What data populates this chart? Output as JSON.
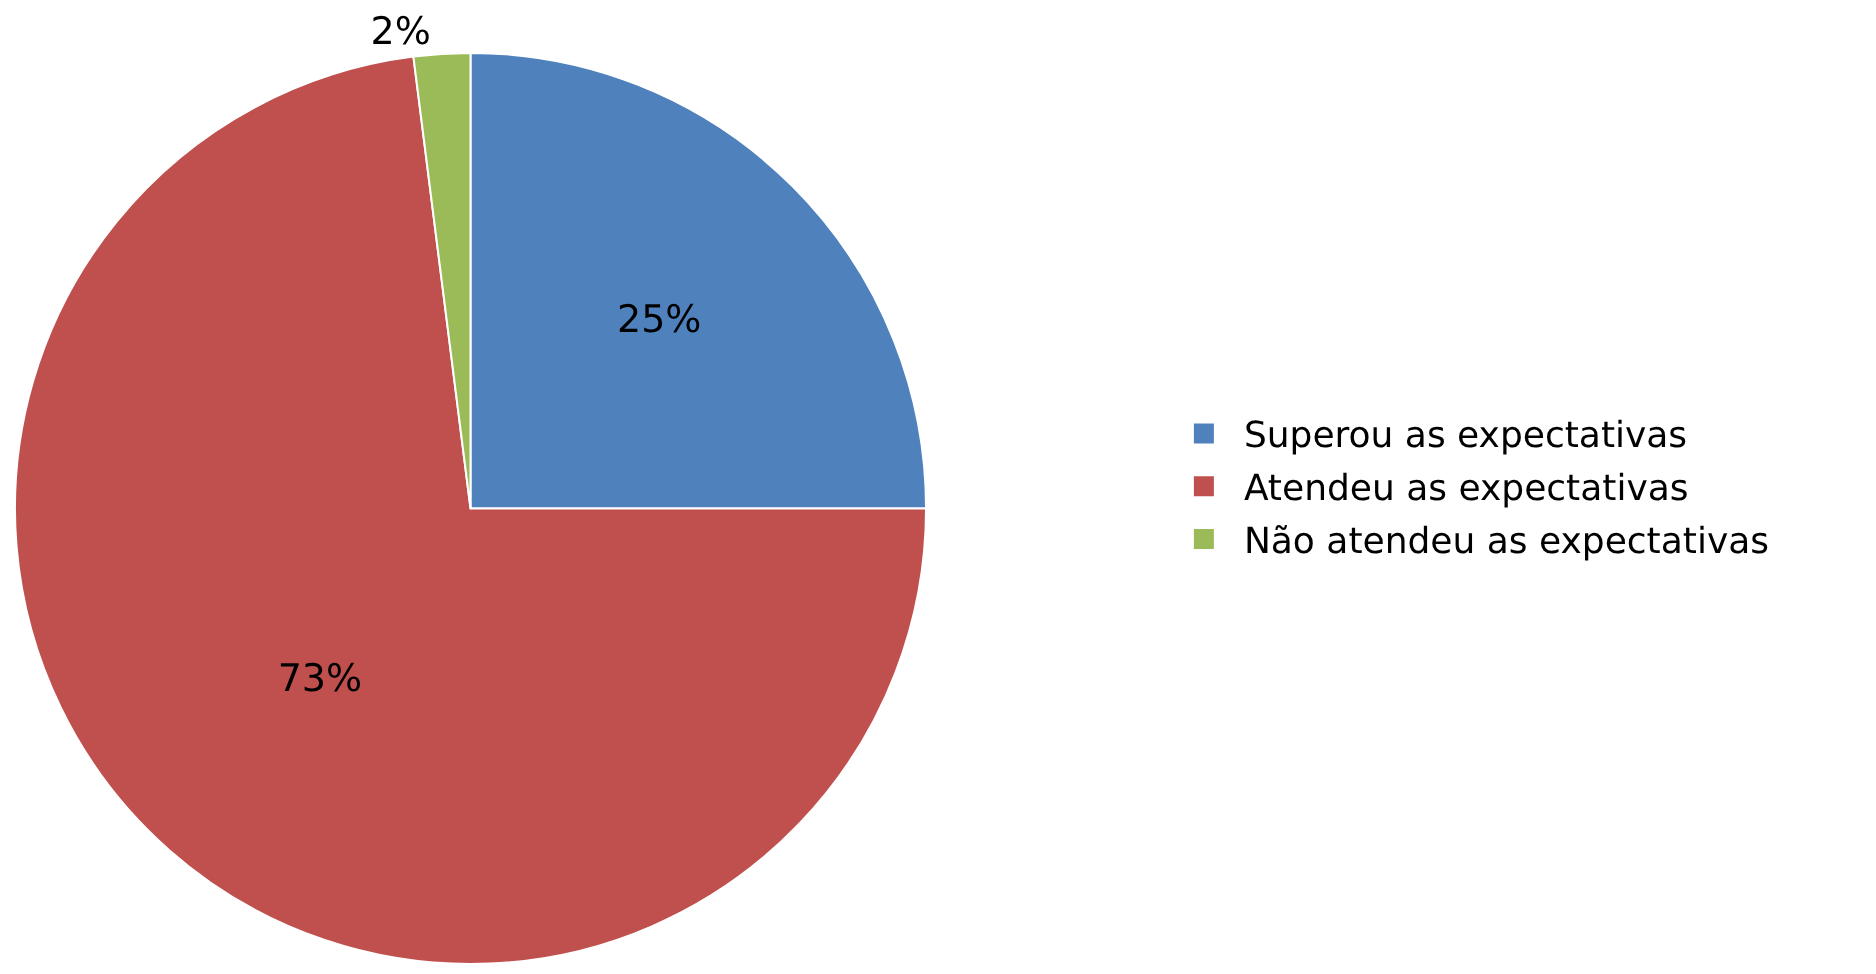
{
  "chart_data": {
    "type": "pie",
    "categories": [
      "Superou as expectativas",
      "Atendeu as expectativas",
      "Não atendeu as expectativas"
    ],
    "values": [
      25,
      73,
      2
    ],
    "colors": [
      "#4f81bd",
      "#c0504d",
      "#9bbb59"
    ],
    "value_labels": [
      "25%",
      "73%",
      "2%"
    ],
    "legend": "right"
  }
}
